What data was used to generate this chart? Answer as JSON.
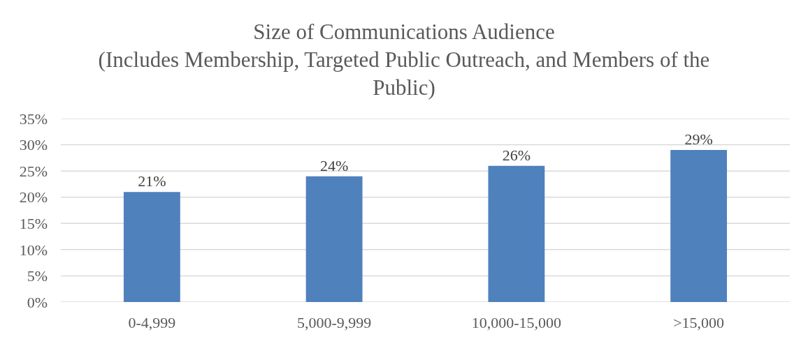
{
  "chart_data": {
    "type": "bar",
    "title": "Size of Communications Audience\n(Includes Membership, Targeted Public Outreach, and Members of the\nPublic)",
    "categories": [
      "0-4,999",
      "5,000-9,999",
      "10,000-15,000",
      ">15,000"
    ],
    "values": [
      21,
      24,
      26,
      29
    ],
    "color": "#4f81bd",
    "data_labels": true,
    "value_labels": [
      "21%",
      "24%",
      "26%",
      "29%"
    ],
    "ylim": [
      0,
      35
    ],
    "yticks": [
      {
        "value": 0,
        "label": "0%"
      },
      {
        "value": 5,
        "label": "5%"
      },
      {
        "value": 10,
        "label": "10%"
      },
      {
        "value": 15,
        "label": "15%"
      },
      {
        "value": 20,
        "label": "20%"
      },
      {
        "value": 25,
        "label": "25%"
      },
      {
        "value": 30,
        "label": "30%"
      },
      {
        "value": 35,
        "label": "35%"
      }
    ],
    "grid": "y"
  }
}
